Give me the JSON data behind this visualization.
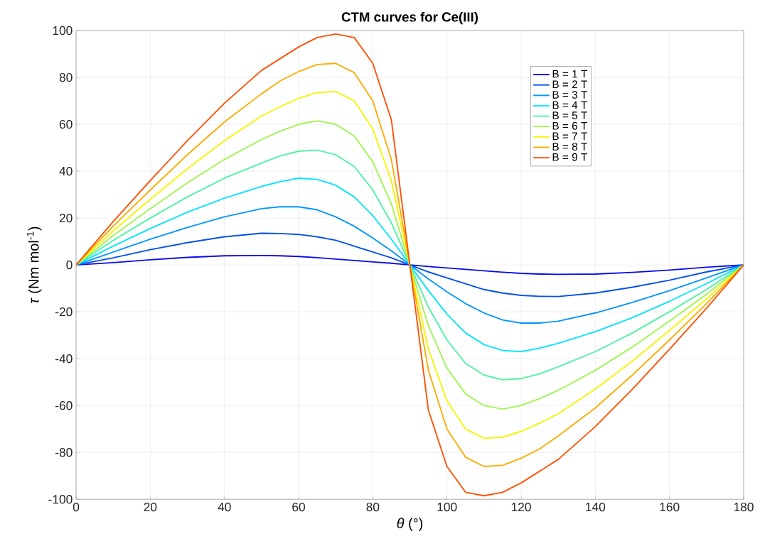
{
  "chart_data": {
    "type": "line",
    "title": "**CTM curves for Ce(III)**",
    "xlabel": "*θ* (°)",
    "ylabel": "*τ* (Nm mol$^{-1}$)",
    "x": [
      0,
      10,
      20,
      30,
      40,
      50,
      55,
      60,
      65,
      70,
      75,
      80,
      85,
      90,
      95,
      100,
      105,
      110,
      115,
      120,
      125,
      130,
      140,
      150,
      160,
      170,
      180
    ],
    "xlim": [
      0,
      180
    ],
    "xticks": [
      0,
      20,
      40,
      60,
      80,
      100,
      120,
      140,
      160,
      180
    ],
    "ylim": [
      -100,
      100
    ],
    "yticks": [
      -100,
      -80,
      -60,
      -40,
      -20,
      0,
      20,
      40,
      60,
      80,
      100
    ],
    "grid": true,
    "legend": "top right",
    "marker": "none",
    "line_style": "solid",
    "series": [
      {
        "name": "B = 1 T",
        "color": "#0a0aee",
        "values": [
          0,
          1,
          2.2,
          3.2,
          3.9,
          4,
          3.9,
          3.6,
          3.1,
          2.5,
          1.9,
          1.3,
          0.7,
          0,
          -0.7,
          -1.3,
          -1.9,
          -2.5,
          -3.1,
          -3.6,
          -3.9,
          -4,
          -3.9,
          -3.2,
          -2.2,
          -1,
          0
        ]
      },
      {
        "name": "B = 2 T",
        "color": "#0050f0",
        "values": [
          0,
          3,
          6.5,
          9.5,
          12,
          13.5,
          13.4,
          13,
          12,
          10.5,
          8,
          5.5,
          3,
          0,
          -3,
          -5.5,
          -8,
          -10.5,
          -12,
          -13,
          -13.4,
          -13.5,
          -12,
          -9.5,
          -6.5,
          -3,
          0
        ]
      },
      {
        "name": "B = 3 T",
        "color": "#0096ff",
        "values": [
          0,
          5.5,
          11,
          16,
          20.5,
          24,
          24.8,
          24.8,
          23.5,
          20.5,
          16.5,
          11.5,
          6,
          0,
          -6,
          -11.5,
          -16.5,
          -20.5,
          -23.5,
          -24.8,
          -24.8,
          -24,
          -20.5,
          -16,
          -11,
          -5.5,
          0
        ]
      },
      {
        "name": "B = 4 T",
        "color": "#00e5ff",
        "values": [
          0,
          8,
          15.5,
          22.5,
          28.5,
          33.5,
          35.5,
          37,
          36.5,
          34,
          29,
          21,
          11,
          0,
          -11,
          -21,
          -29,
          -34,
          -36.5,
          -37,
          -35.5,
          -33.5,
          -28.5,
          -22.5,
          -15.5,
          -8,
          0
        ]
      },
      {
        "name": "B = 5 T",
        "color": "#4cf5a0",
        "values": [
          0,
          10.5,
          20,
          29,
          37,
          43.5,
          46.5,
          48.5,
          49,
          47,
          42,
          32,
          18,
          0,
          -18,
          -32,
          -42,
          -47,
          -49,
          -48.5,
          -46.5,
          -43.5,
          -37,
          -29,
          -20,
          -10.5,
          0
        ]
      },
      {
        "name": "B = 6 T",
        "color": "#a0f550",
        "values": [
          0,
          12.5,
          24,
          35,
          45,
          53.5,
          57,
          60,
          61.5,
          60,
          55,
          44,
          26,
          0,
          -26,
          -44,
          -55,
          -60,
          -61.5,
          -60,
          -57,
          -53.5,
          -45,
          -35,
          -24,
          -12.5,
          0
        ]
      },
      {
        "name": "B = 7 T",
        "color": "#f5f500",
        "values": [
          0,
          14.5,
          28,
          41,
          53,
          63.5,
          67.5,
          71,
          73.5,
          74,
          70,
          58,
          36,
          0,
          -36,
          -58,
          -70,
          -74,
          -73.5,
          -71,
          -67.5,
          -63.5,
          -53,
          -41,
          -28,
          -14.5,
          0
        ]
      },
      {
        "name": "B = 8 T",
        "color": "#ffaa00",
        "values": [
          0,
          16.5,
          32,
          47,
          61,
          73,
          78.5,
          82.5,
          85.5,
          86,
          82,
          70,
          45,
          0,
          -45,
          -70,
          -82,
          -86,
          -85.5,
          -82.5,
          -78.5,
          -73,
          -61,
          -47,
          -32,
          -16.5,
          0
        ]
      },
      {
        "name": "B = 9 T",
        "color": "#ff5000",
        "values": [
          0,
          18.5,
          36,
          53,
          69,
          83,
          88,
          93,
          97,
          98.5,
          97,
          86,
          62,
          0,
          -62,
          -86,
          -97,
          -98.5,
          -97,
          -93,
          -88,
          -83,
          -69,
          -53,
          -36,
          -18.5,
          0
        ]
      }
    ]
  }
}
